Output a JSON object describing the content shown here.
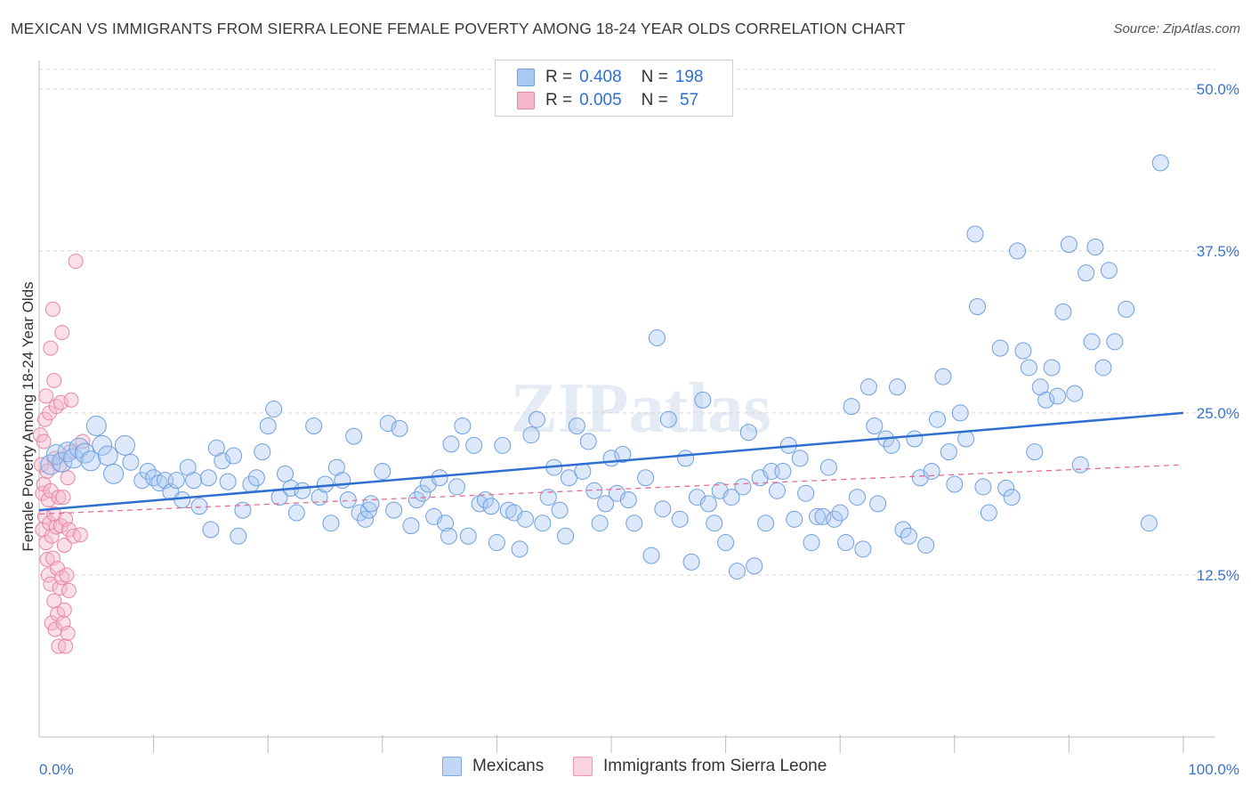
{
  "title": "MEXICAN VS IMMIGRANTS FROM SIERRA LEONE FEMALE POVERTY AMONG 18-24 YEAR OLDS CORRELATION CHART",
  "source": "Source: ZipAtlas.com",
  "watermark": "ZIPatlas",
  "legend": {
    "rows": [
      {
        "r_label": "R = ",
        "r_value": "0.408",
        "n_label": "N = ",
        "n_value": "198",
        "color": "#a9c8f2"
      },
      {
        "r_label": "R = ",
        "r_value": "0.005",
        "n_label": "N = ",
        "n_value": " 57",
        "color": "#f5b8cb"
      }
    ]
  },
  "bottom_legend": [
    "Mexicans",
    "Immigrants from Sierra Leone"
  ],
  "colors": {
    "blue_fill": "#a9c8f2",
    "blue_stroke": "#6f9fe0",
    "blue_line": "#2e6fd1",
    "pink_fill": "#f5b8cb",
    "pink_stroke": "#e886a6",
    "pink_line": "#e36c95",
    "tick_label": "#3b72c9"
  },
  "chart_data": {
    "type": "scatter",
    "title": "MEXICAN VS IMMIGRANTS FROM SIERRA LEONE FEMALE POVERTY AMONG 18-24 YEAR OLDS CORRELATION CHART",
    "xlabel": "",
    "ylabel": "Female Poverty Among 18-24 Year Olds",
    "xlim": [
      0,
      100
    ],
    "ylim": [
      0,
      51.5
    ],
    "x_tick_labels": [
      "0.0%",
      "100.0%"
    ],
    "y_ticks": [
      12.5,
      25.0,
      37.5,
      50.0
    ],
    "y_tick_labels": [
      "12.5%",
      "25.0%",
      "37.5%",
      "50.0%"
    ],
    "grid": "horizontal dashed",
    "series": [
      {
        "name": "Mexicans",
        "R": 0.408,
        "N": 198,
        "trend": {
          "x": [
            0,
            100
          ],
          "y": [
            17.5,
            25.0
          ]
        },
        "points": [
          [
            1,
            21.0
          ],
          [
            1.5,
            21.8
          ],
          [
            2,
            21.2
          ],
          [
            2.5,
            22.0
          ],
          [
            3,
            21.5
          ],
          [
            3.5,
            22.3
          ],
          [
            4,
            21.9
          ],
          [
            4.5,
            21.3
          ],
          [
            5,
            24.0
          ],
          [
            5.5,
            22.5
          ],
          [
            6,
            21.7
          ],
          [
            6.5,
            20.3
          ],
          [
            7.5,
            22.5
          ],
          [
            8,
            21.2
          ],
          [
            9,
            19.8
          ],
          [
            9.5,
            20.5
          ],
          [
            10,
            20.0
          ],
          [
            10.5,
            19.6
          ],
          [
            11,
            19.8
          ],
          [
            11.5,
            18.9
          ],
          [
            12,
            19.8
          ],
          [
            12.5,
            18.3
          ],
          [
            13,
            20.8
          ],
          [
            13.5,
            19.8
          ],
          [
            14,
            17.8
          ],
          [
            14.8,
            20.0
          ],
          [
            15,
            16.0
          ],
          [
            15.5,
            22.3
          ],
          [
            16,
            21.3
          ],
          [
            16.5,
            19.7
          ],
          [
            17,
            21.7
          ],
          [
            17.4,
            15.5
          ],
          [
            17.8,
            17.5
          ],
          [
            18.5,
            19.5
          ],
          [
            19,
            20.0
          ],
          [
            19.5,
            22.0
          ],
          [
            20,
            24.0
          ],
          [
            20.5,
            25.3
          ],
          [
            21,
            18.5
          ],
          [
            21.5,
            20.3
          ],
          [
            22,
            19.2
          ],
          [
            22.5,
            17.3
          ],
          [
            23,
            19.0
          ],
          [
            24,
            24.0
          ],
          [
            24.5,
            18.5
          ],
          [
            25,
            19.5
          ],
          [
            25.5,
            16.5
          ],
          [
            26,
            20.8
          ],
          [
            26.5,
            19.8
          ],
          [
            27,
            18.3
          ],
          [
            27.5,
            23.2
          ],
          [
            28,
            17.3
          ],
          [
            28.5,
            16.8
          ],
          [
            28.8,
            17.5
          ],
          [
            29,
            18.0
          ],
          [
            30,
            20.5
          ],
          [
            30.5,
            24.2
          ],
          [
            31,
            17.5
          ],
          [
            31.5,
            23.8
          ],
          [
            32.5,
            16.3
          ],
          [
            33,
            18.3
          ],
          [
            33.5,
            18.8
          ],
          [
            34,
            19.5
          ],
          [
            34.5,
            17.0
          ],
          [
            35,
            20.0
          ],
          [
            35.5,
            16.5
          ],
          [
            35.8,
            15.5
          ],
          [
            36,
            22.6
          ],
          [
            36.5,
            19.3
          ],
          [
            37,
            24.0
          ],
          [
            37.5,
            15.5
          ],
          [
            38,
            22.5
          ],
          [
            38.5,
            18.0
          ],
          [
            39,
            18.3
          ],
          [
            39.5,
            17.8
          ],
          [
            40,
            15.0
          ],
          [
            40.5,
            22.5
          ],
          [
            41,
            17.5
          ],
          [
            41.5,
            17.3
          ],
          [
            42,
            14.5
          ],
          [
            42.5,
            16.8
          ],
          [
            43,
            23.3
          ],
          [
            43.5,
            24.5
          ],
          [
            44,
            16.5
          ],
          [
            44.5,
            18.5
          ],
          [
            45,
            20.8
          ],
          [
            45.5,
            17.5
          ],
          [
            46,
            15.5
          ],
          [
            46.3,
            20.0
          ],
          [
            47,
            24.0
          ],
          [
            47.5,
            20.5
          ],
          [
            48,
            22.8
          ],
          [
            48.5,
            19.0
          ],
          [
            49,
            16.5
          ],
          [
            49.5,
            18.0
          ],
          [
            50,
            21.5
          ],
          [
            50.5,
            18.8
          ],
          [
            51,
            21.8
          ],
          [
            51.5,
            18.3
          ],
          [
            52,
            16.5
          ],
          [
            53,
            20.0
          ],
          [
            53.5,
            14.0
          ],
          [
            54,
            30.8
          ],
          [
            54.5,
            17.6
          ],
          [
            55,
            24.5
          ],
          [
            56,
            16.8
          ],
          [
            56.5,
            21.5
          ],
          [
            57,
            13.5
          ],
          [
            57.5,
            18.5
          ],
          [
            58,
            26.0
          ],
          [
            58.5,
            18.0
          ],
          [
            59,
            16.5
          ],
          [
            59.5,
            19.0
          ],
          [
            60,
            15.0
          ],
          [
            60.5,
            18.5
          ],
          [
            61,
            12.8
          ],
          [
            61.5,
            19.3
          ],
          [
            62,
            23.5
          ],
          [
            62.5,
            13.2
          ],
          [
            63,
            20.0
          ],
          [
            63.5,
            16.5
          ],
          [
            64,
            20.5
          ],
          [
            64.5,
            19.0
          ],
          [
            65,
            20.5
          ],
          [
            65.5,
            22.5
          ],
          [
            66,
            16.8
          ],
          [
            66.5,
            21.5
          ],
          [
            67,
            18.8
          ],
          [
            67.5,
            15.0
          ],
          [
            68,
            17.0
          ],
          [
            68.5,
            17.0
          ],
          [
            69,
            20.8
          ],
          [
            69.5,
            16.8
          ],
          [
            70,
            17.3
          ],
          [
            70.5,
            15.0
          ],
          [
            71,
            25.5
          ],
          [
            71.5,
            18.5
          ],
          [
            72,
            14.5
          ],
          [
            72.5,
            27.0
          ],
          [
            73,
            24.0
          ],
          [
            73.3,
            18.0
          ],
          [
            74,
            23.0
          ],
          [
            74.5,
            22.5
          ],
          [
            75,
            27.0
          ],
          [
            75.5,
            16.0
          ],
          [
            76,
            15.5
          ],
          [
            76.5,
            23.0
          ],
          [
            77,
            20.0
          ],
          [
            77.5,
            14.8
          ],
          [
            78,
            20.5
          ],
          [
            78.5,
            24.5
          ],
          [
            79,
            27.8
          ],
          [
            79.5,
            22.0
          ],
          [
            80,
            19.5
          ],
          [
            80.5,
            25.0
          ],
          [
            81,
            23.0
          ],
          [
            81.8,
            38.8
          ],
          [
            82,
            33.2
          ],
          [
            82.5,
            19.3
          ],
          [
            83,
            17.3
          ],
          [
            84,
            30.0
          ],
          [
            84.5,
            19.2
          ],
          [
            85,
            18.5
          ],
          [
            85.5,
            37.5
          ],
          [
            86,
            29.8
          ],
          [
            86.5,
            28.5
          ],
          [
            87,
            22.0
          ],
          [
            87.5,
            27.0
          ],
          [
            88,
            26.0
          ],
          [
            88.5,
            28.5
          ],
          [
            89,
            26.3
          ],
          [
            89.5,
            32.8
          ],
          [
            90,
            38.0
          ],
          [
            90.5,
            26.5
          ],
          [
            91,
            21.0
          ],
          [
            91.5,
            35.8
          ],
          [
            92,
            30.5
          ],
          [
            92.3,
            37.8
          ],
          [
            93,
            28.5
          ],
          [
            93.5,
            36.0
          ],
          [
            94,
            30.5
          ],
          [
            95,
            33.0
          ],
          [
            97,
            16.5
          ],
          [
            98,
            44.3
          ]
        ]
      },
      {
        "name": "Immigrants from Sierra Leone",
        "R": 0.005,
        "N": 57,
        "trend": {
          "x": [
            0,
            100
          ],
          "y": [
            17.2,
            21.0
          ]
        },
        "points": [
          [
            0.1,
            23.3
          ],
          [
            0.2,
            21.0
          ],
          [
            0.3,
            18.8
          ],
          [
            0.3,
            16.0
          ],
          [
            0.4,
            22.8
          ],
          [
            0.4,
            19.5
          ],
          [
            0.5,
            24.5
          ],
          [
            0.5,
            17.0
          ],
          [
            0.6,
            26.3
          ],
          [
            0.6,
            15.0
          ],
          [
            0.7,
            20.5
          ],
          [
            0.7,
            13.7
          ],
          [
            0.8,
            18.3
          ],
          [
            0.8,
            12.5
          ],
          [
            0.9,
            25.0
          ],
          [
            0.9,
            16.5
          ],
          [
            1.0,
            19.0
          ],
          [
            1.0,
            11.8
          ],
          [
            1.0,
            30.0
          ],
          [
            1.1,
            15.5
          ],
          [
            1.1,
            8.8
          ],
          [
            1.2,
            33.0
          ],
          [
            1.2,
            13.8
          ],
          [
            1.3,
            27.5
          ],
          [
            1.3,
            17.2
          ],
          [
            1.3,
            10.5
          ],
          [
            1.4,
            21.5
          ],
          [
            1.4,
            8.3
          ],
          [
            1.5,
            25.5
          ],
          [
            1.5,
            16.2
          ],
          [
            1.6,
            13.0
          ],
          [
            1.6,
            9.5
          ],
          [
            1.7,
            18.5
          ],
          [
            1.7,
            7.0
          ],
          [
            1.8,
            21.0
          ],
          [
            1.8,
            11.5
          ],
          [
            1.9,
            25.8
          ],
          [
            1.9,
            16.3
          ],
          [
            2.0,
            31.2
          ],
          [
            2.0,
            12.3
          ],
          [
            2.1,
            18.5
          ],
          [
            2.1,
            8.8
          ],
          [
            2.2,
            14.8
          ],
          [
            2.2,
            9.8
          ],
          [
            2.3,
            16.8
          ],
          [
            2.3,
            7.0
          ],
          [
            2.4,
            12.5
          ],
          [
            2.5,
            20.0
          ],
          [
            2.5,
            8.0
          ],
          [
            2.6,
            16.0
          ],
          [
            2.6,
            11.3
          ],
          [
            2.7,
            22.0
          ],
          [
            2.8,
            26.0
          ],
          [
            3.0,
            15.5
          ],
          [
            3.2,
            36.7
          ],
          [
            3.6,
            15.6
          ],
          [
            3.8,
            22.8
          ]
        ]
      }
    ]
  }
}
